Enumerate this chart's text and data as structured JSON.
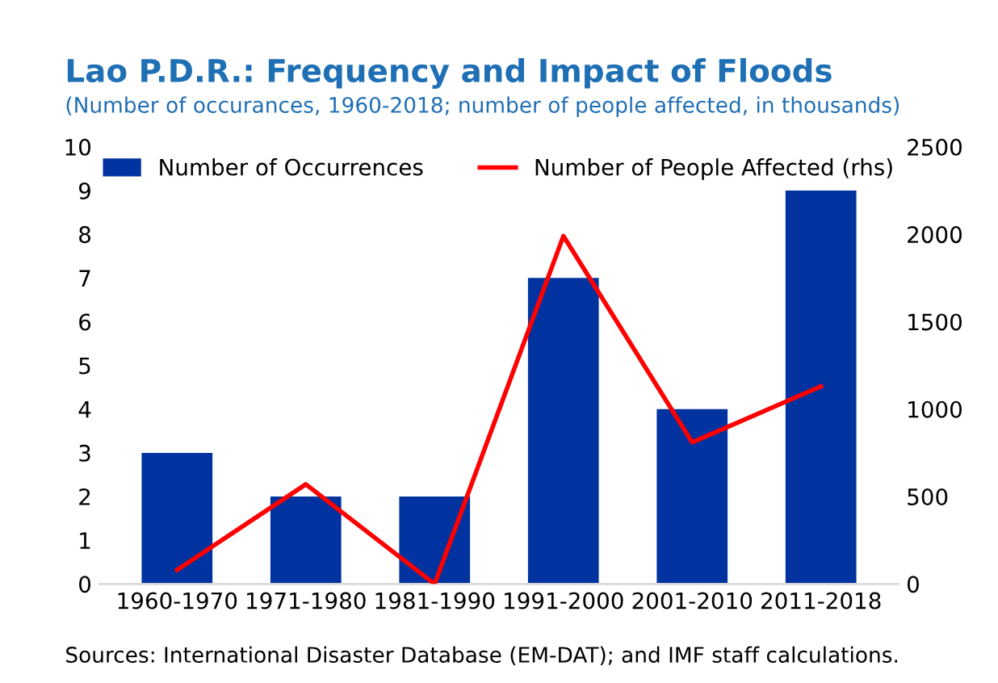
{
  "chart_data": {
    "type": "bar",
    "title": "Lao P.D.R.: Frequency and Impact of Floods",
    "subtitle": "(Number of occurances, 1960-2018; number of people affected, in thousands)",
    "annotations": [
      "Sources: International Disaster Database (EM-DAT); and IMF staff calculations."
    ],
    "categories": [
      "1960-1970",
      "1971-1980",
      "1981-1990",
      "1991-2000",
      "2001-2010",
      "2011-2018"
    ],
    "series": [
      {
        "name": "Number of Occurrences",
        "color": "#0033a0",
        "values": [
          3,
          2,
          2,
          7,
          4,
          9
        ]
      },
      {
        "name": "Number of People Affected (rhs)",
        "type": "line",
        "axis": "y2",
        "color": "#ff0000",
        "values": [
          80,
          570,
          0,
          1990,
          810,
          1130
        ]
      }
    ],
    "ylim": [
      0,
      10
    ],
    "yticks": [
      0,
      1,
      2,
      3,
      4,
      5,
      6,
      7,
      8,
      9,
      10
    ],
    "y2lim": [
      0,
      2500
    ],
    "y2ticks": [
      0,
      500,
      1000,
      1500,
      2000,
      2500
    ],
    "grid": false,
    "legend": "top"
  }
}
